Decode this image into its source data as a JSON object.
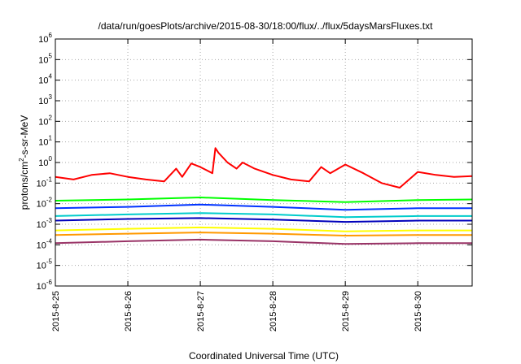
{
  "chart_data": {
    "type": "line",
    "title": "/data/run/goesPlots/archive/2015-08-30/18:00/flux/../flux/5daysMarsFluxes.txt",
    "xlabel": "Coordinated Universal Time (UTC)",
    "ylabel_pre": "protons/cm",
    "ylabel_sup": "2",
    "ylabel_post": "-s-sr-MeV",
    "y_scale": "log",
    "ylim": [
      1e-06,
      1000000.0
    ],
    "y_ticks": [
      {
        "base": "10",
        "exp": "-6",
        "value": 1e-06
      },
      {
        "base": "10",
        "exp": "-5",
        "value": 1e-05
      },
      {
        "base": "10",
        "exp": "-4",
        "value": 0.0001
      },
      {
        "base": "10",
        "exp": "-3",
        "value": 0.001
      },
      {
        "base": "10",
        "exp": "-2",
        "value": 0.01
      },
      {
        "base": "10",
        "exp": "-1",
        "value": 0.1
      },
      {
        "base": "10",
        "exp": "0",
        "value": 1
      },
      {
        "base": "10",
        "exp": "1",
        "value": 10
      },
      {
        "base": "10",
        "exp": "2",
        "value": 100
      },
      {
        "base": "10",
        "exp": "3",
        "value": 1000
      },
      {
        "base": "10",
        "exp": "4",
        "value": 10000
      },
      {
        "base": "10",
        "exp": "5",
        "value": 100000
      },
      {
        "base": "10",
        "exp": "6",
        "value": 1000000
      }
    ],
    "x_range_days": [
      "2015-08-25T00:00",
      "2015-08-30T18:00"
    ],
    "x_ticks": [
      {
        "label": "2015-8-25",
        "date": "2015-08-25"
      },
      {
        "label": "2015-8-26",
        "date": "2015-08-26"
      },
      {
        "label": "2015-8-27",
        "date": "2015-08-27"
      },
      {
        "label": "2015-8-28",
        "date": "2015-08-28"
      },
      {
        "label": "2015-8-29",
        "date": "2015-08-29"
      },
      {
        "label": "2015-8-30",
        "date": "2015-08-30"
      }
    ],
    "grid": true,
    "legend": "none",
    "series": [
      {
        "color": "#ff0000",
        "x": [
          "2015-08-25T00:00",
          "2015-08-25T06:00",
          "2015-08-25T12:00",
          "2015-08-25T18:00",
          "2015-08-26T00:00",
          "2015-08-26T06:00",
          "2015-08-26T12:00",
          "2015-08-26T16:00",
          "2015-08-26T18:00",
          "2015-08-26T21:00",
          "2015-08-27T00:00",
          "2015-08-27T04:00",
          "2015-08-27T05:00",
          "2015-08-27T06:00",
          "2015-08-27T09:00",
          "2015-08-27T12:00",
          "2015-08-27T14:00",
          "2015-08-27T18:00",
          "2015-08-28T00:00",
          "2015-08-28T06:00",
          "2015-08-28T12:00",
          "2015-08-28T16:00",
          "2015-08-28T19:00",
          "2015-08-29T00:00",
          "2015-08-29T06:00",
          "2015-08-29T12:00",
          "2015-08-29T18:00",
          "2015-08-30T00:00",
          "2015-08-30T06:00",
          "2015-08-30T12:00",
          "2015-08-30T18:00"
        ],
        "values": [
          0.2,
          0.15,
          0.25,
          0.3,
          0.2,
          0.15,
          0.12,
          0.5,
          0.2,
          0.9,
          0.6,
          0.3,
          5.0,
          3.0,
          1.0,
          0.5,
          1.0,
          0.5,
          0.25,
          0.15,
          0.12,
          0.6,
          0.3,
          0.8,
          0.3,
          0.1,
          0.06,
          0.35,
          0.25,
          0.2,
          0.22
        ]
      },
      {
        "color": "#00ff00",
        "x": [
          "2015-08-25T00:00",
          "2015-08-26T00:00",
          "2015-08-27T00:00",
          "2015-08-28T00:00",
          "2015-08-29T00:00",
          "2015-08-30T00:00",
          "2015-08-30T18:00"
        ],
        "values": [
          0.014,
          0.016,
          0.02,
          0.015,
          0.012,
          0.015,
          0.016
        ]
      },
      {
        "color": "#0033ff",
        "x": [
          "2015-08-25T00:00",
          "2015-08-26T00:00",
          "2015-08-27T00:00",
          "2015-08-28T00:00",
          "2015-08-29T00:00",
          "2015-08-30T00:00",
          "2015-08-30T18:00"
        ],
        "values": [
          0.006,
          0.007,
          0.009,
          0.007,
          0.005,
          0.006,
          0.006
        ]
      },
      {
        "color": "#00cccc",
        "x": [
          "2015-08-25T00:00",
          "2015-08-26T00:00",
          "2015-08-27T00:00",
          "2015-08-28T00:00",
          "2015-08-29T00:00",
          "2015-08-30T00:00",
          "2015-08-30T18:00"
        ],
        "values": [
          0.0025,
          0.003,
          0.0035,
          0.003,
          0.0022,
          0.0025,
          0.0025
        ]
      },
      {
        "color": "#0000bb",
        "x": [
          "2015-08-25T00:00",
          "2015-08-26T00:00",
          "2015-08-27T00:00",
          "2015-08-28T00:00",
          "2015-08-29T00:00",
          "2015-08-30T00:00",
          "2015-08-30T18:00"
        ],
        "values": [
          0.0015,
          0.0018,
          0.002,
          0.0017,
          0.0013,
          0.0015,
          0.0015
        ]
      },
      {
        "color": "#ffff00",
        "x": [
          "2015-08-25T00:00",
          "2015-08-26T00:00",
          "2015-08-27T00:00",
          "2015-08-28T00:00",
          "2015-08-29T00:00",
          "2015-08-30T00:00",
          "2015-08-30T18:00"
        ],
        "values": [
          0.0005,
          0.0006,
          0.0007,
          0.0006,
          0.00045,
          0.0005,
          0.0005
        ]
      },
      {
        "color": "#ff9900",
        "x": [
          "2015-08-25T00:00",
          "2015-08-26T00:00",
          "2015-08-27T00:00",
          "2015-08-28T00:00",
          "2015-08-29T00:00",
          "2015-08-30T00:00",
          "2015-08-30T18:00"
        ],
        "values": [
          0.0003,
          0.00035,
          0.0004,
          0.00035,
          0.00028,
          0.0003,
          0.0003
        ]
      },
      {
        "color": "#993366",
        "x": [
          "2015-08-25T00:00",
          "2015-08-26T00:00",
          "2015-08-27T00:00",
          "2015-08-28T00:00",
          "2015-08-29T00:00",
          "2015-08-30T00:00",
          "2015-08-30T18:00"
        ],
        "values": [
          0.00012,
          0.00015,
          0.00018,
          0.00015,
          0.00011,
          0.00012,
          0.00012
        ]
      }
    ]
  }
}
